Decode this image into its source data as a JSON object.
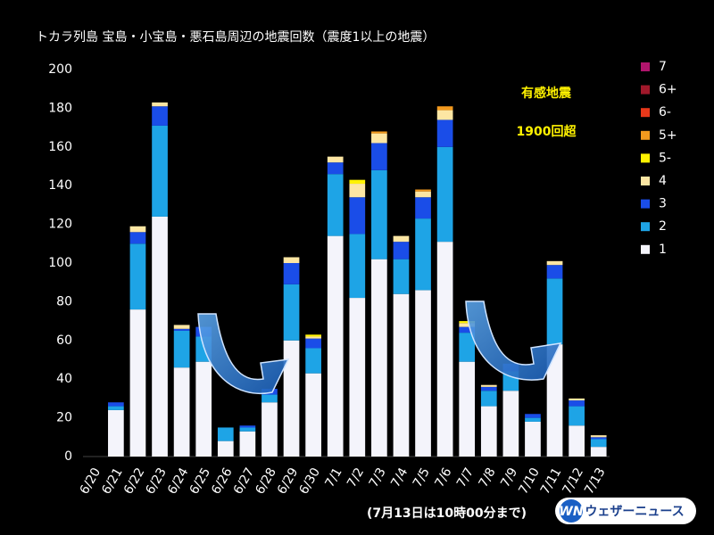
{
  "chart_data": {
    "type": "bar",
    "stacked": true,
    "title": "トカラ列島 宝島・小宝島・悪石島周辺の地震回数（震度1以上の地震）",
    "annotation": [
      "有感地震",
      "1900回超"
    ],
    "note": "(7月13日は10時00分まで)",
    "logo": "WN",
    "source": "ウェザーニュース",
    "categories": [
      "6/20",
      "6/21",
      "6/22",
      "6/23",
      "6/24",
      "6/25",
      "6/26",
      "6/27",
      "6/28",
      "6/29",
      "6/30",
      "7/1",
      "7/2",
      "7/3",
      "7/4",
      "7/5",
      "7/6",
      "7/7",
      "7/8",
      "7/9",
      "7/10",
      "7/11",
      "7/12",
      "7/13"
    ],
    "series": [
      {
        "name": "1",
        "color": "#f4f4fb",
        "values": [
          0,
          24,
          76,
          124,
          46,
          49,
          8,
          13,
          28,
          60,
          43,
          114,
          82,
          102,
          84,
          86,
          111,
          49,
          26,
          34,
          18,
          58,
          16,
          5
        ]
      },
      {
        "name": "2",
        "color": "#1ea4e6",
        "values": [
          0,
          2,
          34,
          47,
          19,
          13,
          7,
          2,
          4,
          29,
          13,
          32,
          33,
          46,
          18,
          37,
          49,
          15,
          8,
          10,
          2,
          34,
          10,
          4
        ]
      },
      {
        "name": "3",
        "color": "#1a4de8",
        "values": [
          0,
          2,
          6,
          10,
          1,
          5,
          0,
          1,
          3,
          11,
          5,
          6,
          19,
          14,
          9,
          11,
          14,
          3,
          2,
          4,
          2,
          7,
          3,
          1
        ]
      },
      {
        "name": "4",
        "color": "#fde6a3",
        "values": [
          0,
          0,
          3,
          2,
          2,
          0,
          0,
          0,
          0,
          3,
          1,
          3,
          7,
          5,
          3,
          3,
          5,
          2,
          1,
          0,
          0,
          2,
          1,
          1
        ]
      },
      {
        "name": "5-",
        "color": "#fff200",
        "values": [
          0,
          0,
          0,
          0,
          0,
          0,
          0,
          0,
          0,
          0,
          1,
          0,
          2,
          0,
          0,
          0,
          0,
          1,
          0,
          0,
          0,
          0,
          0,
          0
        ]
      },
      {
        "name": "5+",
        "color": "#f39a1e",
        "values": [
          0,
          0,
          0,
          0,
          0,
          0,
          0,
          0,
          0,
          0,
          0,
          0,
          0,
          1,
          0,
          1,
          2,
          0,
          0,
          0,
          0,
          0,
          0,
          0
        ]
      },
      {
        "name": "6-",
        "color": "#e8381a",
        "values": [
          0,
          0,
          0,
          0,
          0,
          0,
          0,
          0,
          0,
          0,
          0,
          0,
          0,
          0,
          0,
          0,
          0,
          0,
          0,
          0,
          0,
          0,
          0,
          0
        ]
      },
      {
        "name": "6+",
        "color": "#a0182a",
        "values": [
          0,
          0,
          0,
          0,
          0,
          0,
          0,
          0,
          0,
          0,
          0,
          0,
          0,
          0,
          0,
          0,
          0,
          0,
          0,
          0,
          0,
          0,
          0,
          0
        ]
      },
      {
        "name": "7",
        "color": "#b0156c",
        "values": [
          0,
          0,
          0,
          0,
          0,
          0,
          0,
          0,
          0,
          0,
          0,
          0,
          0,
          0,
          0,
          0,
          0,
          0,
          0,
          0,
          0,
          0,
          0,
          0
        ]
      }
    ],
    "ylim": [
      0,
      200
    ],
    "yticks": [
      0,
      20,
      40,
      60,
      80,
      100,
      120,
      140,
      160,
      180,
      200
    ],
    "grid": false,
    "legend": "right"
  }
}
